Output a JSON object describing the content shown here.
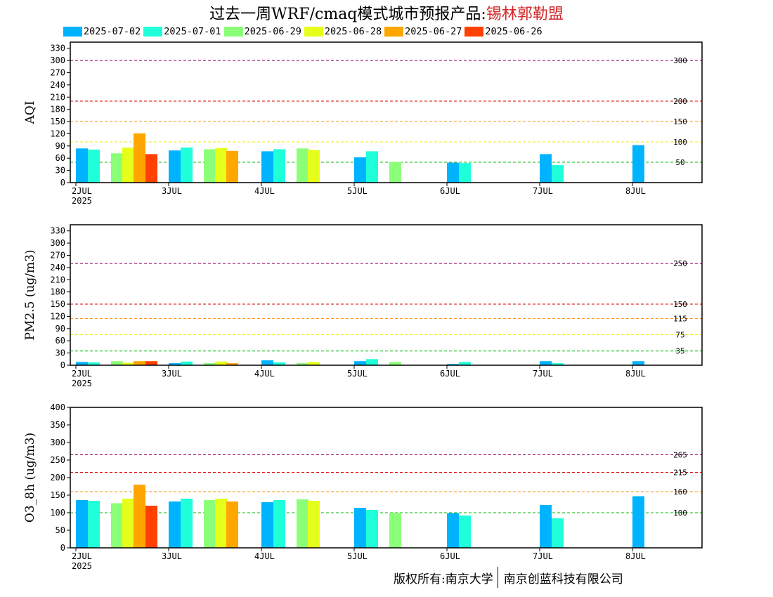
{
  "title": {
    "prefix": "过去一周WRF/cmaq模式城市预报产品:",
    "city": "锡林郭勒盟"
  },
  "colors": {
    "series": [
      "#00b3ff",
      "#1fffd9",
      "#8cff78",
      "#e6ff1a",
      "#ffa600",
      "#ff4000"
    ],
    "ref": {
      "green": "#00bb00",
      "yellow": "#eeee00",
      "orange": "#ff8c00",
      "red": "#dd0000",
      "purple": "#990066"
    }
  },
  "footer": {
    "left": "版权所有:南京大学",
    "right": "南京创蓝科技有限公司"
  },
  "chart_data": [
    {
      "type": "bar",
      "ylabel": "AQI",
      "ylim": [
        0,
        345
      ],
      "yticks": [
        0,
        30,
        60,
        90,
        120,
        150,
        180,
        210,
        240,
        270,
        300,
        330
      ],
      "x_days": [
        "2JUL",
        "3JUL",
        "4JUL",
        "5JUL",
        "6JUL",
        "7JUL",
        "8JUL"
      ],
      "x_year": "2025",
      "ref_lines": [
        {
          "value": 300,
          "label": "300",
          "color": "purple"
        },
        {
          "value": 200,
          "label": "200",
          "color": "red"
        },
        {
          "value": 150,
          "label": "150",
          "color": "orange"
        },
        {
          "value": 100,
          "label": "100",
          "color": "yellow"
        },
        {
          "value": 50,
          "label": "50",
          "color": "green"
        }
      ],
      "series": [
        {
          "name": "2025-07-02",
          "values": [
            84,
            79,
            77,
            62,
            49,
            70,
            92
          ]
        },
        {
          "name": "2025-07-01",
          "values": [
            81,
            86,
            82,
            77,
            48,
            43,
            null
          ]
        },
        {
          "name": "2025-06-29",
          "values": [
            72,
            82,
            84,
            51,
            null,
            null,
            null
          ]
        },
        {
          "name": "2025-06-28",
          "values": [
            86,
            85,
            80,
            null,
            null,
            null,
            null
          ]
        },
        {
          "name": "2025-06-27",
          "values": [
            121,
            78,
            null,
            null,
            null,
            null,
            null
          ]
        },
        {
          "name": "2025-06-26",
          "values": [
            70,
            null,
            null,
            null,
            null,
            null,
            null
          ]
        }
      ]
    },
    {
      "type": "bar",
      "ylabel": "PM2.5 (ug/m3)",
      "ylim": [
        0,
        345
      ],
      "yticks": [
        0,
        30,
        60,
        90,
        120,
        150,
        180,
        210,
        240,
        270,
        300,
        330
      ],
      "x_days": [
        "2JUL",
        "3JUL",
        "4JUL",
        "5JUL",
        "6JUL",
        "7JUL",
        "8JUL"
      ],
      "x_year": "2025",
      "ref_lines": [
        {
          "value": 250,
          "label": "250",
          "color": "purple"
        },
        {
          "value": 150,
          "label": "150",
          "color": "red"
        },
        {
          "value": 115,
          "label": "115",
          "color": "orange"
        },
        {
          "value": 75,
          "label": "75",
          "color": "yellow"
        },
        {
          "value": 35,
          "label": "35",
          "color": "green"
        }
      ],
      "series": [
        {
          "name": "2025-07-02",
          "values": [
            8,
            5,
            12,
            10,
            3,
            10,
            10
          ]
        },
        {
          "name": "2025-07-01",
          "values": [
            7,
            9,
            7,
            15,
            8,
            5,
            null
          ]
        },
        {
          "name": "2025-06-29",
          "values": [
            10,
            5,
            5,
            8,
            null,
            null,
            null
          ]
        },
        {
          "name": "2025-06-28",
          "values": [
            6,
            9,
            8,
            null,
            null,
            null,
            null
          ]
        },
        {
          "name": "2025-06-27",
          "values": [
            10,
            5,
            null,
            null,
            null,
            null,
            null
          ]
        },
        {
          "name": "2025-06-26",
          "values": [
            10,
            null,
            null,
            null,
            null,
            null,
            null
          ]
        }
      ]
    },
    {
      "type": "bar",
      "ylabel": "O3_8h (ug/m3)",
      "ylim": [
        0,
        400
      ],
      "yticks": [
        0,
        50,
        100,
        150,
        200,
        250,
        300,
        350,
        400
      ],
      "x_days": [
        "2JUL",
        "3JUL",
        "4JUL",
        "5JUL",
        "6JUL",
        "7JUL",
        "8JUL"
      ],
      "x_year": "2025",
      "ref_lines": [
        {
          "value": 265,
          "label": "265",
          "color": "purple"
        },
        {
          "value": 215,
          "label": "215",
          "color": "red"
        },
        {
          "value": 160,
          "label": "160",
          "color": "orange"
        },
        {
          "value": 100,
          "label": "100",
          "color": "green"
        }
      ],
      "series": [
        {
          "name": "2025-07-02",
          "values": [
            136,
            132,
            130,
            114,
            99,
            122,
            147
          ]
        },
        {
          "name": "2025-07-01",
          "values": [
            134,
            140,
            136,
            108,
            92,
            84,
            null
          ]
        },
        {
          "name": "2025-06-29",
          "values": [
            127,
            136,
            138,
            100,
            null,
            null,
            null
          ]
        },
        {
          "name": "2025-06-28",
          "values": [
            140,
            140,
            134,
            null,
            null,
            null,
            null
          ]
        },
        {
          "name": "2025-06-27",
          "values": [
            180,
            132,
            null,
            null,
            null,
            null,
            null
          ]
        },
        {
          "name": "2025-06-26",
          "values": [
            120,
            null,
            null,
            null,
            null,
            null,
            null
          ]
        }
      ]
    }
  ]
}
